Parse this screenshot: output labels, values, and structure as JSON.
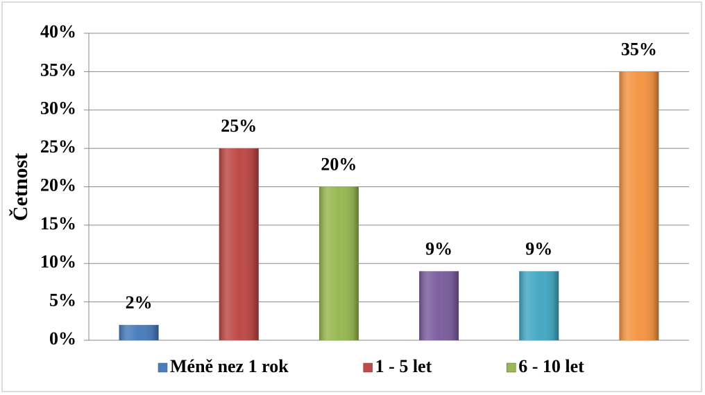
{
  "chart_data": {
    "type": "bar",
    "y_label": "Četnost",
    "categories": [
      "Méně nez 1 rok",
      "1 - 5 let",
      "6 - 10 let",
      null,
      null,
      null
    ],
    "values": [
      2,
      25,
      20,
      9,
      9,
      35
    ],
    "value_labels": [
      "2%",
      "25%",
      "20%",
      "9%",
      "9%",
      "35%"
    ],
    "colors": [
      "#4a7ebb",
      "#be4b48",
      "#98b954",
      "#7d60a0",
      "#46aac5",
      "#f59645"
    ],
    "ylim": [
      0,
      40
    ],
    "yticks": [
      {
        "value": 0,
        "label": "0%"
      },
      {
        "value": 5,
        "label": "5%"
      },
      {
        "value": 10,
        "label": "10%"
      },
      {
        "value": 15,
        "label": "15%"
      },
      {
        "value": 20,
        "label": "20%"
      },
      {
        "value": 25,
        "label": "25%"
      },
      {
        "value": 30,
        "label": "30%"
      },
      {
        "value": 35,
        "label": "35%"
      },
      {
        "value": 40,
        "label": "40%"
      }
    ],
    "grid": true
  }
}
